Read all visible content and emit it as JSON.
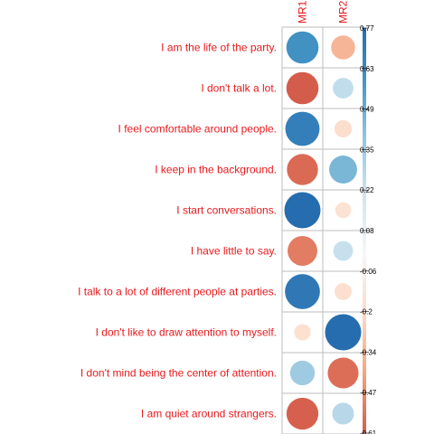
{
  "chart_data": {
    "type": "heatmap",
    "columns": [
      "MR1",
      "MR2"
    ],
    "rows": [
      "I am the life of the party.",
      "I don't talk a lot.",
      "I feel comfortable around people.",
      "I keep in the background.",
      "I start conversations.",
      "I have little to say.",
      "I talk to a lot of different people at parties.",
      "I don't like to draw attention to myself.",
      "I don't mind being the center of attention.",
      "I am quiet around strangers."
    ],
    "values": [
      [
        0.61,
        -0.34
      ],
      [
        -0.61,
        0.25
      ],
      [
        0.69,
        -0.18
      ],
      [
        -0.57,
        0.46
      ],
      [
        0.77,
        -0.15
      ],
      [
        -0.52,
        0.23
      ],
      [
        0.72,
        -0.17
      ],
      [
        -0.16,
        0.77
      ],
      [
        0.36,
        -0.56
      ],
      [
        -0.6,
        0.28
      ]
    ],
    "colorbar": {
      "ticks": [
        "0.77",
        "0.63",
        "0.49",
        "0.35",
        "0.22",
        "0.08",
        "-0.06",
        "-0.2",
        "-0.34",
        "-0.47",
        "-0.61"
      ],
      "range": [
        -0.61,
        0.77
      ]
    },
    "legend": "right",
    "grid": true
  },
  "colors": {
    "label": "#e8191d",
    "grid": "#bdbdbd",
    "palette": [
      "#67001f",
      "#b2182b",
      "#d6604d",
      "#f4a582",
      "#fddbc7",
      "#f7f7f7",
      "#d1e5f0",
      "#92c5de",
      "#4393c3",
      "#2166ac",
      "#053061"
    ]
  }
}
